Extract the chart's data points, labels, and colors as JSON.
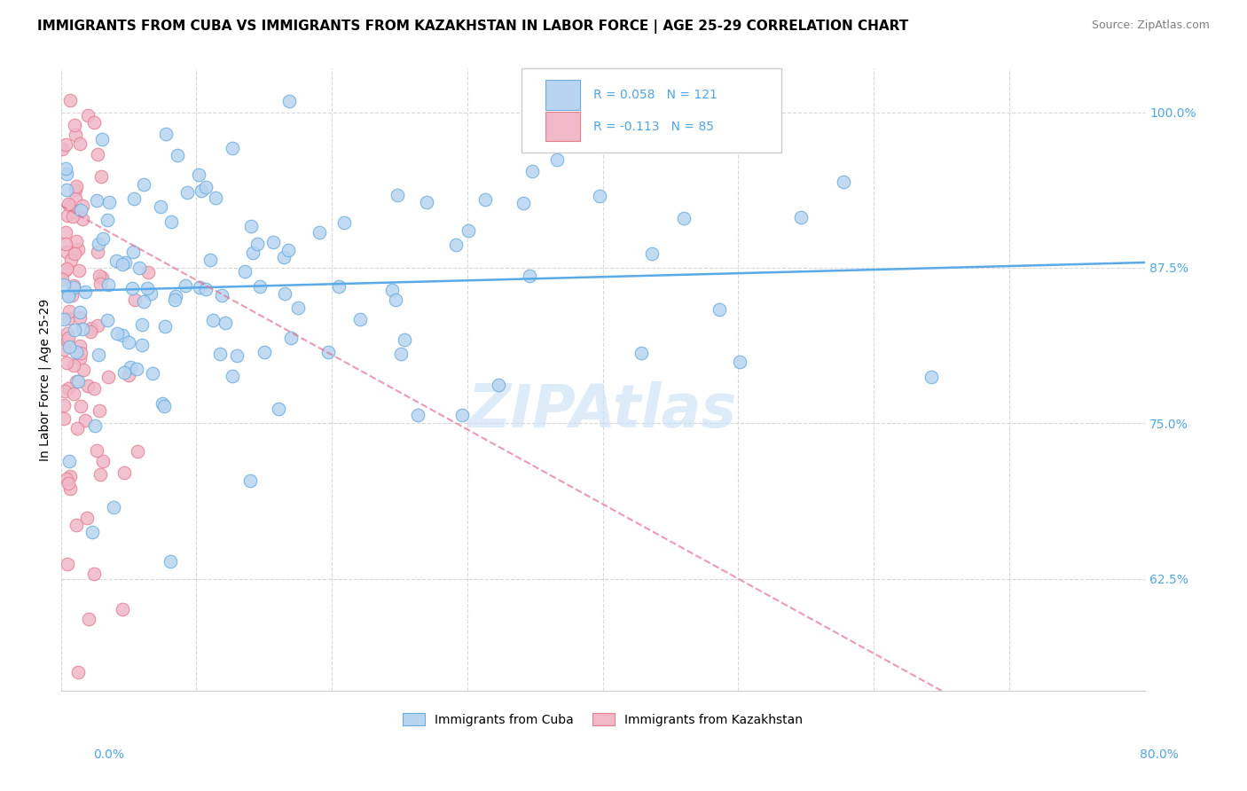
{
  "title": "IMMIGRANTS FROM CUBA VS IMMIGRANTS FROM KAZAKHSTAN IN LABOR FORCE | AGE 25-29 CORRELATION CHART",
  "source": "Source: ZipAtlas.com",
  "ylabel": "In Labor Force | Age 25-29",
  "y_tick_vals": [
    0.625,
    0.75,
    0.875,
    1.0
  ],
  "y_tick_labels": [
    "62.5%",
    "75.0%",
    "87.5%",
    "100.0%"
  ],
  "x_range": [
    0.0,
    0.8
  ],
  "y_range": [
    0.535,
    1.035
  ],
  "cuba_R": 0.058,
  "cuba_N": 121,
  "kaz_R": -0.113,
  "kaz_N": 85,
  "cuba_color": "#b8d4f0",
  "kaz_color": "#f0b8c8",
  "cuba_edge_color": "#6aaee0",
  "kaz_edge_color": "#e88090",
  "cuba_line_color": "#5aaae8",
  "kaz_line_color": "#e87090",
  "legend_text_color": "#4da6e8",
  "background_color": "#ffffff",
  "grid_color": "#d8d8d8",
  "watermark_color": "#c8e0f8",
  "title_fontsize": 11,
  "source_fontsize": 9,
  "axis_tick_fontsize": 10,
  "ylabel_fontsize": 10,
  "legend_fontsize": 10,
  "inner_legend_fontsize": 10
}
